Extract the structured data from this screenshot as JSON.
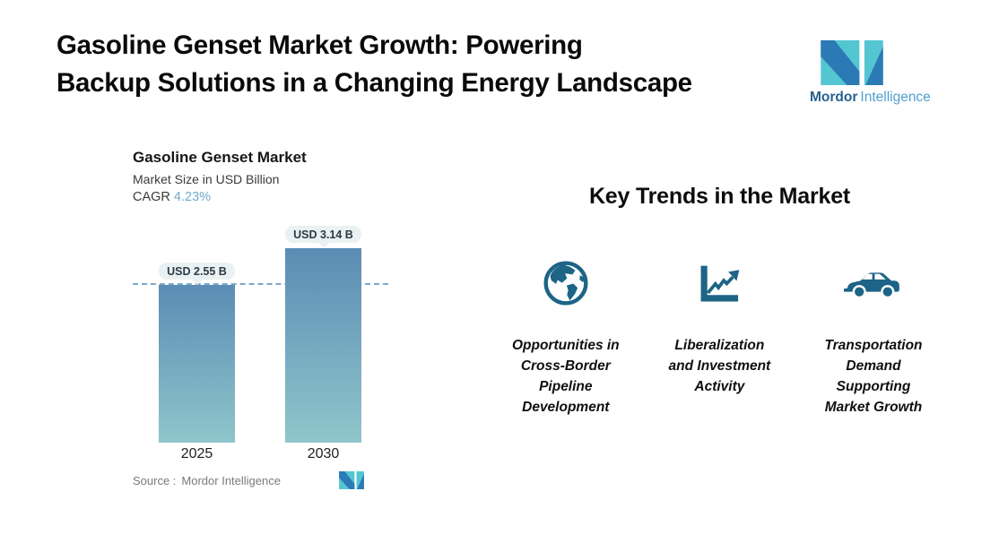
{
  "header": {
    "title_lines": [
      "Gasoline Genset Market Growth: Powering",
      "Backup Solutions in a Changing Energy Landscape"
    ]
  },
  "brand": {
    "name_primary": "Mordor",
    "name_secondary": "Intelligence",
    "mark_teal": "#53c6d2",
    "mark_blue": "#2b79b5"
  },
  "chart_data": {
    "type": "bar",
    "title": "Gasoline Genset Market",
    "subtitle": "Market Size in USD Billion",
    "cagr_label": "CAGR",
    "cagr_value": "4.23%",
    "categories": [
      "2025",
      "2030"
    ],
    "values": [
      2.55,
      3.14
    ],
    "value_labels": [
      "USD 2.55 B",
      "USD 3.14 B"
    ],
    "ylabel": "Market Size in USD Billion",
    "baseline_value": 2.55,
    "grid": false,
    "source_label": "Source :",
    "source_name": "Mordor Intelligence",
    "bar_gradient_top": "#5b8cb4",
    "bar_gradient_bottom": "#8fc6cb",
    "dashed_line_color": "#79aacd",
    "cagr_value_color": "#70a9cc"
  },
  "trends": {
    "heading": "Key Trends in the Market",
    "icon_color": "#1d6486",
    "items": [
      {
        "icon": "globe-icon",
        "label_lines": [
          "Opportunities in",
          "Cross-Border",
          "Pipeline",
          "Development"
        ]
      },
      {
        "icon": "growth-chart-icon",
        "label_lines": [
          "Liberalization",
          "and Investment",
          "Activity"
        ]
      },
      {
        "icon": "car-icon",
        "label_lines": [
          "Transportation",
          "Demand",
          "Supporting",
          "Market Growth"
        ]
      }
    ]
  }
}
